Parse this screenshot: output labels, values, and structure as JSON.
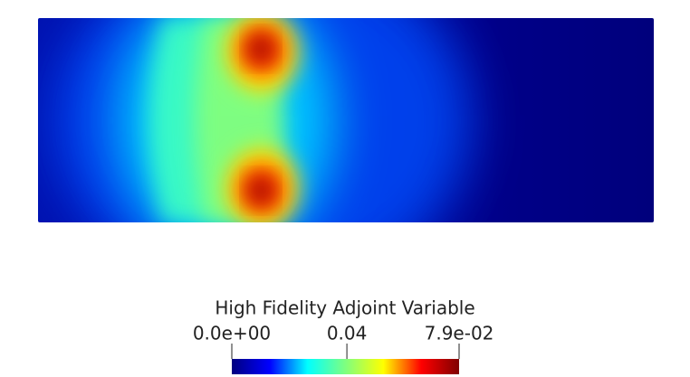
{
  "colorbar": {
    "title": "High Fidelity Adjoint Variable",
    "range": [
      0,
      0.079
    ],
    "ticks": [
      {
        "value": 0,
        "label": "0.0e+00"
      },
      0.04,
      {
        "value": 0.079,
        "label": "7.9e-02"
      }
    ],
    "colors": [
      "#00007f",
      "#0000ff",
      "#00ffff",
      "#7fff7f",
      "#ffff00",
      "#ff0000",
      "#7f0000"
    ]
  }
}
